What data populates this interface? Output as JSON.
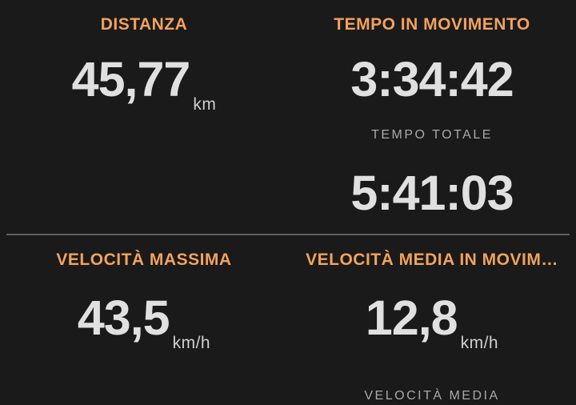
{
  "theme": {
    "background": "#1A1A1A",
    "accent_orange": "#F1A25F",
    "value_color": "#E0E0E0",
    "unit_color": "#CFCFCF",
    "muted_label_color": "#A9A9A9",
    "divider_color": "#5E5E5E"
  },
  "stats": {
    "distance": {
      "label": "DISTANZA",
      "value": "45,77",
      "unit": "km"
    },
    "moving_time": {
      "label": "TEMPO IN MOVIMENTO",
      "value": "3:34:42"
    },
    "total_time": {
      "label": "TEMPO TOTALE",
      "value": "5:41:03"
    },
    "max_speed": {
      "label": "VELOCITÀ MASSIMA",
      "value": "43,5",
      "unit": "km/h"
    },
    "avg_moving_speed": {
      "label": "VELOCITÀ MEDIA IN MOVIM…",
      "value": "12,8",
      "unit": "km/h"
    },
    "avg_speed": {
      "label": "VELOCITÀ MEDIA"
    }
  }
}
